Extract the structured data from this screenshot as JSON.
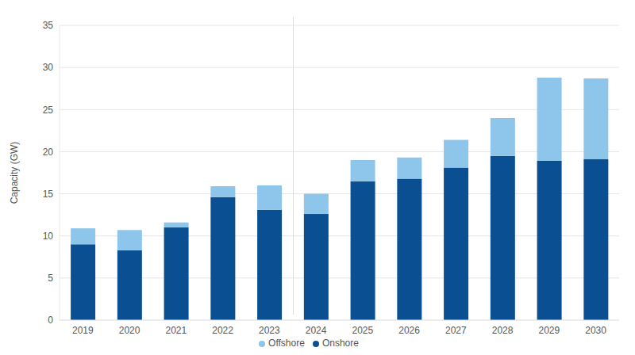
{
  "chart_data": {
    "type": "bar",
    "stacked": true,
    "y_label": "Capacity (GW)",
    "categories": [
      "2019",
      "2020",
      "2021",
      "2022",
      "2023",
      "2024",
      "2025",
      "2026",
      "2027",
      "2028",
      "2029",
      "2030"
    ],
    "series": [
      {
        "name": "Onshore",
        "color": "#0b4f93",
        "values": [
          9.0,
          8.3,
          11.0,
          14.6,
          13.1,
          12.6,
          16.5,
          16.8,
          18.1,
          19.5,
          18.9,
          19.1
        ]
      },
      {
        "name": "Offshore",
        "color": "#8ec5ea",
        "values": [
          1.9,
          2.4,
          0.6,
          1.3,
          2.9,
          2.4,
          2.5,
          2.5,
          3.3,
          4.5,
          9.9,
          9.6
        ]
      }
    ],
    "ylim": [
      0,
      35
    ],
    "yticks": [
      0,
      5,
      10,
      15,
      20,
      25,
      30,
      35
    ],
    "grid": true,
    "legend": "bottom"
  }
}
